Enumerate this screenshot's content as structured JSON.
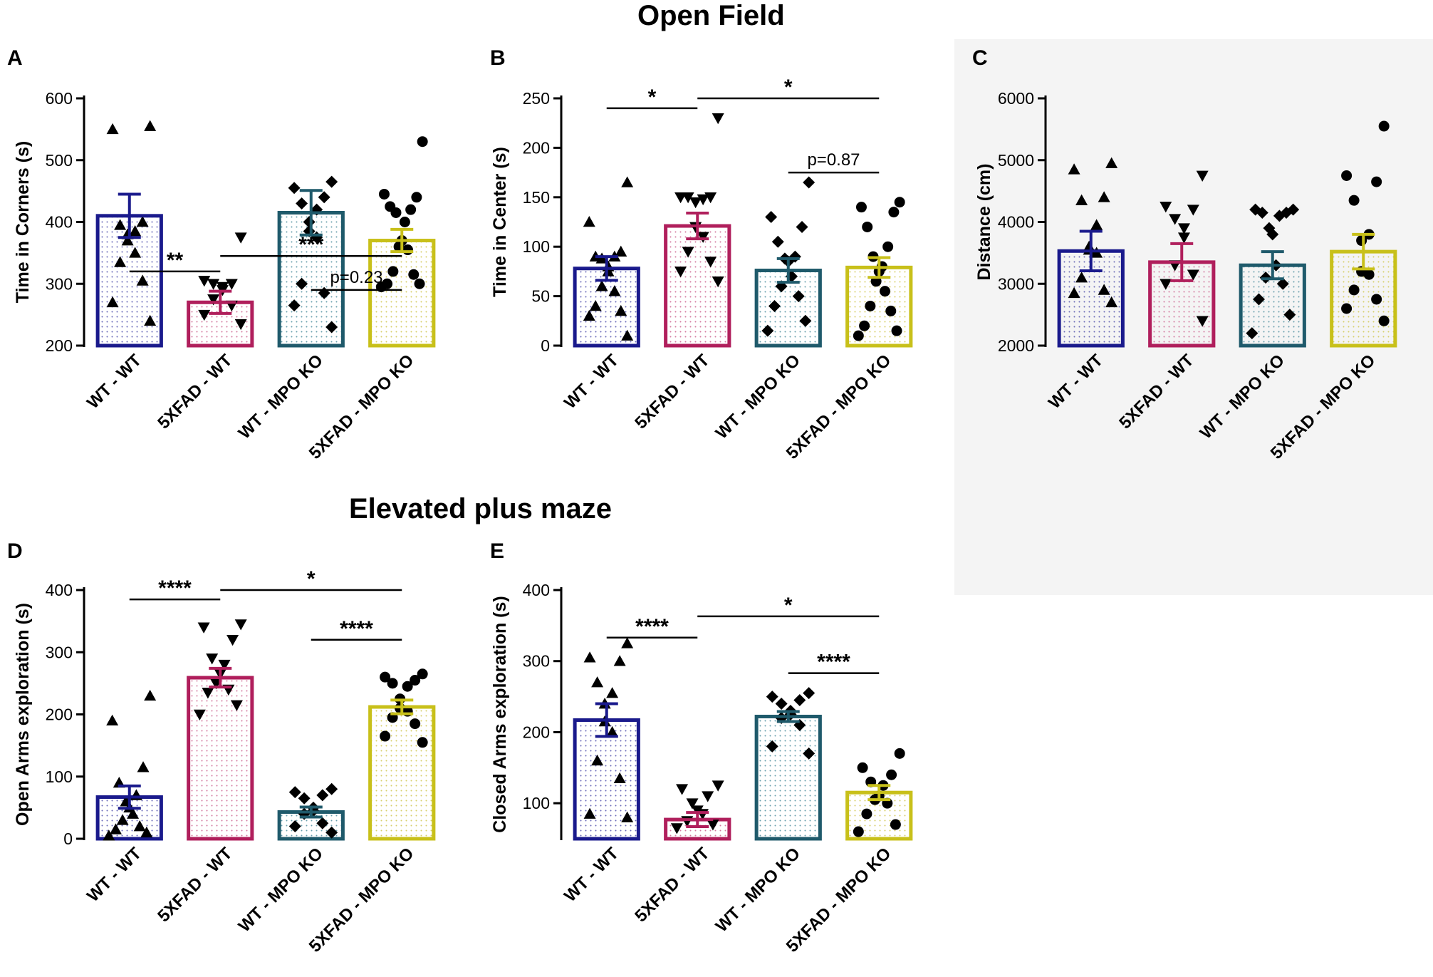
{
  "titles": {
    "open_field": "Open Field",
    "elevated_plus_maze": "Elevated plus maze"
  },
  "group_colors": [
    "#1a1a8c",
    "#b01f5c",
    "#1f5a6b",
    "#c8c01a"
  ],
  "group_markers": [
    "triangle-up",
    "triangle-down",
    "diamond",
    "circle"
  ],
  "chart_data": [
    {
      "panel": "A",
      "type": "bar",
      "ylabel": "Time in Corners (s)",
      "ylim": [
        200,
        600
      ],
      "yticks": [
        200,
        300,
        400,
        500,
        600
      ],
      "categories": [
        "WT - WT",
        "5XFAD - WT",
        "WT - MPO KO",
        "5XFAD - MPO KO"
      ],
      "values": [
        410,
        270,
        415,
        370
      ],
      "sem": [
        35,
        18,
        36,
        18
      ],
      "points": [
        [
          555,
          550,
          400,
          395,
          385,
          380,
          370,
          350,
          335,
          305,
          270,
          240
        ],
        [
          375,
          305,
          300,
          300,
          295,
          290,
          275,
          265,
          250,
          235
        ],
        [
          465,
          455,
          440,
          430,
          420,
          400,
          385,
          375,
          300,
          285,
          265,
          230
        ],
        [
          530,
          445,
          440,
          425,
          420,
          415,
          400,
          370,
          360,
          355,
          320,
          315,
          300,
          300,
          295
        ]
      ],
      "significance": [
        {
          "from": 0,
          "to": 1,
          "label": "**",
          "level": 320
        },
        {
          "from": 1,
          "to": 3,
          "label": "***",
          "level": 345
        },
        {
          "from": 2,
          "to": 3,
          "label": "p=0.23",
          "level": 290
        }
      ]
    },
    {
      "panel": "B",
      "type": "bar",
      "ylabel": "Time in Center (s)",
      "ylim": [
        0,
        250
      ],
      "yticks": [
        0,
        50,
        100,
        150,
        200,
        250
      ],
      "categories": [
        "WT - WT",
        "5XFAD - WT",
        "WT - MPO KO",
        "5XFAD - MPO KO"
      ],
      "values": [
        78,
        121,
        76,
        79
      ],
      "sem": [
        12,
        13,
        12,
        10
      ],
      "points": [
        [
          165,
          125,
          95,
          90,
          90,
          88,
          80,
          75,
          60,
          55,
          40,
          35,
          30,
          10
        ],
        [
          230,
          150,
          150,
          150,
          148,
          145,
          120,
          110,
          95,
          85,
          75,
          65
        ],
        [
          165,
          130,
          120,
          105,
          90,
          88,
          85,
          70,
          60,
          50,
          40,
          25,
          15
        ],
        [
          145,
          140,
          135,
          120,
          100,
          90,
          80,
          75,
          65,
          55,
          40,
          35,
          20,
          15,
          10
        ]
      ],
      "significance": [
        {
          "from": 0,
          "to": 1,
          "label": "*",
          "level": 240
        },
        {
          "from": 1,
          "to": 3,
          "label": "*",
          "level": 250
        },
        {
          "from": 2,
          "to": 3,
          "label": "p=0.87",
          "level": 175
        }
      ]
    },
    {
      "panel": "C",
      "type": "bar",
      "ylabel": "Distance (cm)",
      "ylim": [
        2000,
        6000
      ],
      "yticks": [
        2000,
        3000,
        4000,
        5000,
        6000
      ],
      "categories": [
        "WT - WT",
        "5XFAD - WT",
        "WT - MPO KO",
        "5XFAD - MPO KO"
      ],
      "values": [
        3530,
        3350,
        3300,
        3520
      ],
      "sem": [
        320,
        300,
        220,
        280
      ],
      "points": [
        [
          4950,
          4850,
          4400,
          4350,
          3950,
          3600,
          3550,
          3500,
          3100,
          2900,
          2850,
          2700
        ],
        [
          4750,
          4250,
          4200,
          4050,
          3900,
          3750,
          3300,
          3150,
          3000,
          2400
        ],
        [
          4200,
          4200,
          4150,
          4150,
          4100,
          3900,
          3800,
          3300,
          3100,
          3000,
          2750,
          2500,
          2200
        ],
        [
          5550,
          4750,
          4650,
          4350,
          3800,
          3700,
          3200,
          3150,
          2900,
          2750,
          2600,
          2400
        ]
      ],
      "significance": []
    },
    {
      "panel": "D",
      "type": "bar",
      "ylabel": "Open Arms exploration (s)",
      "ylim": [
        0,
        400
      ],
      "yticks": [
        0,
        100,
        200,
        300,
        400
      ],
      "categories": [
        "WT - WT",
        "5XFAD - WT",
        "WT - MPO KO",
        "5XFAD - MPO KO"
      ],
      "values": [
        67,
        259,
        43,
        212
      ],
      "sem": [
        18,
        15,
        8,
        11
      ],
      "points": [
        [
          230,
          190,
          115,
          90,
          70,
          60,
          50,
          40,
          30,
          20,
          15,
          10,
          5
        ],
        [
          345,
          340,
          320,
          290,
          280,
          265,
          250,
          240,
          235,
          215,
          200
        ],
        [
          80,
          75,
          70,
          65,
          50,
          45,
          40,
          25,
          20,
          10
        ],
        [
          265,
          260,
          255,
          250,
          245,
          225,
          210,
          205,
          195,
          185,
          165,
          155
        ]
      ],
      "significance": [
        {
          "from": 0,
          "to": 1,
          "label": "****",
          "level": 385
        },
        {
          "from": 1,
          "to": 3,
          "label": "*",
          "level": 400
        },
        {
          "from": 2,
          "to": 3,
          "label": "****",
          "level": 320
        }
      ]
    },
    {
      "panel": "E",
      "type": "bar",
      "ylabel": "Closed Arms exploration (s)",
      "ylim": [
        50,
        400
      ],
      "yticks": [
        100,
        200,
        300,
        400
      ],
      "categories": [
        "WT - WT",
        "5XFAD - WT",
        "WT - MPO KO",
        "5XFAD - MPO KO"
      ],
      "values": [
        217,
        77,
        222,
        115
      ],
      "sem": [
        23,
        10,
        7,
        10
      ],
      "points": [
        [
          325,
          305,
          300,
          270,
          255,
          240,
          215,
          200,
          160,
          135,
          85,
          80
        ],
        [
          125,
          120,
          110,
          100,
          90,
          85,
          75,
          70,
          65
        ],
        [
          255,
          250,
          245,
          240,
          230,
          225,
          220,
          210,
          180,
          170
        ],
        [
          170,
          150,
          140,
          130,
          125,
          110,
          105,
          100,
          85,
          70,
          60
        ]
      ],
      "significance": [
        {
          "from": 0,
          "to": 1,
          "label": "****",
          "level": 333
        },
        {
          "from": 1,
          "to": 3,
          "label": "*",
          "level": 363
        },
        {
          "from": 2,
          "to": 3,
          "label": "****",
          "level": 283
        }
      ]
    }
  ]
}
